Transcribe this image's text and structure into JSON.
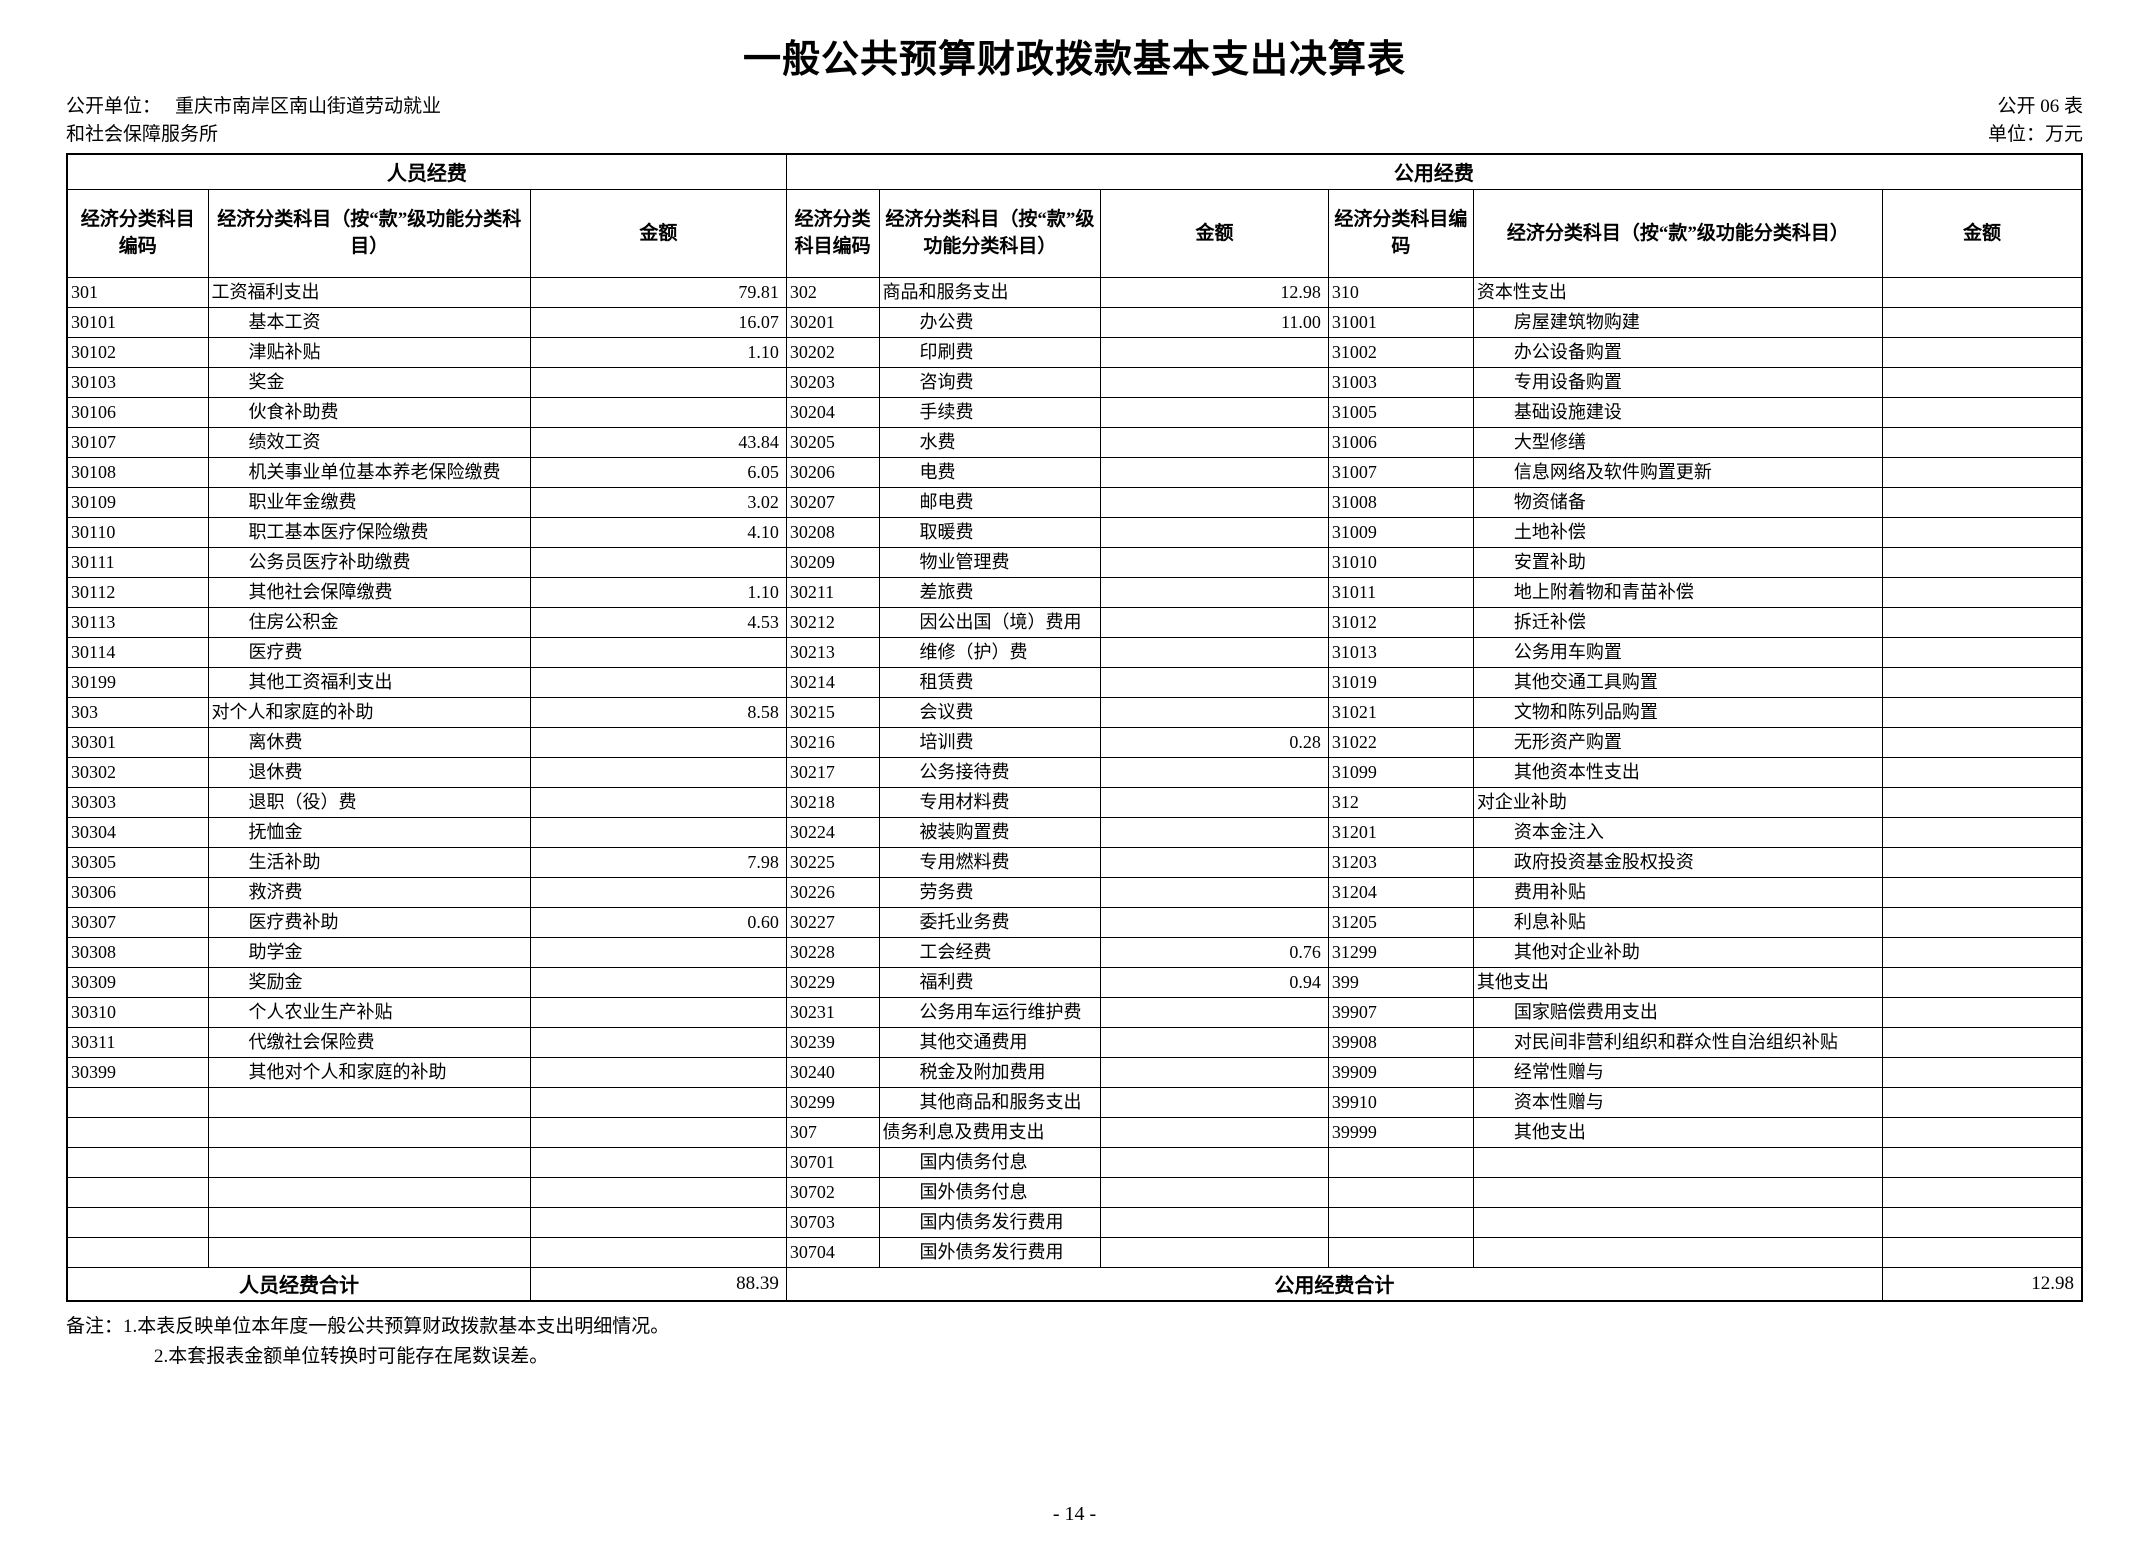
{
  "page": {
    "title": "一般公共预算财政拨款基本支出决算表",
    "publisher_label": "公开单位：",
    "publisher_line1": "重庆市南岸区南山街道劳动就业",
    "publisher_line2": "和社会保障服务所",
    "sheet_no": "公开 06 表",
    "unit": "单位：万元",
    "note1": "备注：1.本表反映单位本年度一般公共预算财政拨款基本支出明细情况。",
    "note2": "2.本套报表金额单位转换时可能存在尾数误差。",
    "page_number": "- 14 -"
  },
  "table": {
    "group_headers": {
      "personnel": "人员经费",
      "public": "公用经费"
    },
    "column_headers": {
      "code": "经济分类科目编码",
      "subject": "经济分类科目（按“款”级功能分类科目）",
      "amount": "金额"
    },
    "totals": {
      "personnel_label": "人员经费合计",
      "personnel_amount": "88.39",
      "public_label": "公用经费合计",
      "public_amount": "12.98"
    },
    "rows": [
      [
        "301",
        "工资福利支出",
        "79.81",
        "302",
        "商品和服务支出",
        "12.98",
        "310",
        "资本性支出",
        ""
      ],
      [
        "30101",
        "基本工资",
        "16.07",
        "30201",
        "办公费",
        "11.00",
        "31001",
        "房屋建筑物购建",
        ""
      ],
      [
        "30102",
        "津贴补贴",
        "1.10",
        "30202",
        "印刷费",
        "",
        "31002",
        "办公设备购置",
        ""
      ],
      [
        "30103",
        "奖金",
        "",
        "30203",
        "咨询费",
        "",
        "31003",
        "专用设备购置",
        ""
      ],
      [
        "30106",
        "伙食补助费",
        "",
        "30204",
        "手续费",
        "",
        "31005",
        "基础设施建设",
        ""
      ],
      [
        "30107",
        "绩效工资",
        "43.84",
        "30205",
        "水费",
        "",
        "31006",
        "大型修缮",
        ""
      ],
      [
        "30108",
        "机关事业单位基本养老保险缴费",
        "6.05",
        "30206",
        "电费",
        "",
        "31007",
        "信息网络及软件购置更新",
        ""
      ],
      [
        "30109",
        "职业年金缴费",
        "3.02",
        "30207",
        "邮电费",
        "",
        "31008",
        "物资储备",
        ""
      ],
      [
        "30110",
        "职工基本医疗保险缴费",
        "4.10",
        "30208",
        "取暖费",
        "",
        "31009",
        "土地补偿",
        ""
      ],
      [
        "30111",
        "公务员医疗补助缴费",
        "",
        "30209",
        "物业管理费",
        "",
        "31010",
        "安置补助",
        ""
      ],
      [
        "30112",
        "其他社会保障缴费",
        "1.10",
        "30211",
        "差旅费",
        "",
        "31011",
        "地上附着物和青苗补偿",
        ""
      ],
      [
        "30113",
        "住房公积金",
        "4.53",
        "30212",
        "因公出国（境）费用",
        "",
        "31012",
        "拆迁补偿",
        ""
      ],
      [
        "30114",
        "医疗费",
        "",
        "30213",
        "维修（护）费",
        "",
        "31013",
        "公务用车购置",
        ""
      ],
      [
        "30199",
        "其他工资福利支出",
        "",
        "30214",
        "租赁费",
        "",
        "31019",
        "其他交通工具购置",
        ""
      ],
      [
        "303",
        "对个人和家庭的补助",
        "8.58",
        "30215",
        "会议费",
        "",
        "31021",
        "文物和陈列品购置",
        ""
      ],
      [
        "30301",
        "离休费",
        "",
        "30216",
        "培训费",
        "0.28",
        "31022",
        "无形资产购置",
        ""
      ],
      [
        "30302",
        "退休费",
        "",
        "30217",
        "公务接待费",
        "",
        "31099",
        "其他资本性支出",
        ""
      ],
      [
        "30303",
        "退职（役）费",
        "",
        "30218",
        "专用材料费",
        "",
        "312",
        "对企业补助",
        ""
      ],
      [
        "30304",
        "抚恤金",
        "",
        "30224",
        "被装购置费",
        "",
        "31201",
        "资本金注入",
        ""
      ],
      [
        "30305",
        "生活补助",
        "7.98",
        "30225",
        "专用燃料费",
        "",
        "31203",
        "政府投资基金股权投资",
        ""
      ],
      [
        "30306",
        "救济费",
        "",
        "30226",
        "劳务费",
        "",
        "31204",
        "费用补贴",
        ""
      ],
      [
        "30307",
        "医疗费补助",
        "0.60",
        "30227",
        "委托业务费",
        "",
        "31205",
        "利息补贴",
        ""
      ],
      [
        "30308",
        "助学金",
        "",
        "30228",
        "工会经费",
        "0.76",
        "31299",
        "其他对企业补助",
        ""
      ],
      [
        "30309",
        "奖励金",
        "",
        "30229",
        "福利费",
        "0.94",
        "399",
        "其他支出",
        ""
      ],
      [
        "30310",
        "个人农业生产补贴",
        "",
        "30231",
        "公务用车运行维护费",
        "",
        "39907",
        "国家赔偿费用支出",
        ""
      ],
      [
        "30311",
        "代缴社会保险费",
        "",
        "30239",
        "其他交通费用",
        "",
        "39908",
        "对民间非营利组织和群众性自治组织补贴",
        ""
      ],
      [
        "30399",
        "其他对个人和家庭的补助",
        "",
        "30240",
        "税金及附加费用",
        "",
        "39909",
        "经常性赠与",
        ""
      ],
      [
        "",
        "",
        "",
        "30299",
        "其他商品和服务支出",
        "",
        "39910",
        "资本性赠与",
        ""
      ],
      [
        "",
        "",
        "",
        "307",
        "债务利息及费用支出",
        "",
        "39999",
        "其他支出",
        ""
      ],
      [
        "",
        "",
        "",
        "30701",
        "国内债务付息",
        "",
        "",
        "",
        ""
      ],
      [
        "",
        "",
        "",
        "30702",
        "国外债务付息",
        "",
        "",
        "",
        ""
      ],
      [
        "",
        "",
        "",
        "30703",
        "国内债务发行费用",
        "",
        "",
        "",
        ""
      ],
      [
        "",
        "",
        "",
        "30704",
        "国外债务发行费用",
        "",
        "",
        "",
        ""
      ]
    ]
  }
}
